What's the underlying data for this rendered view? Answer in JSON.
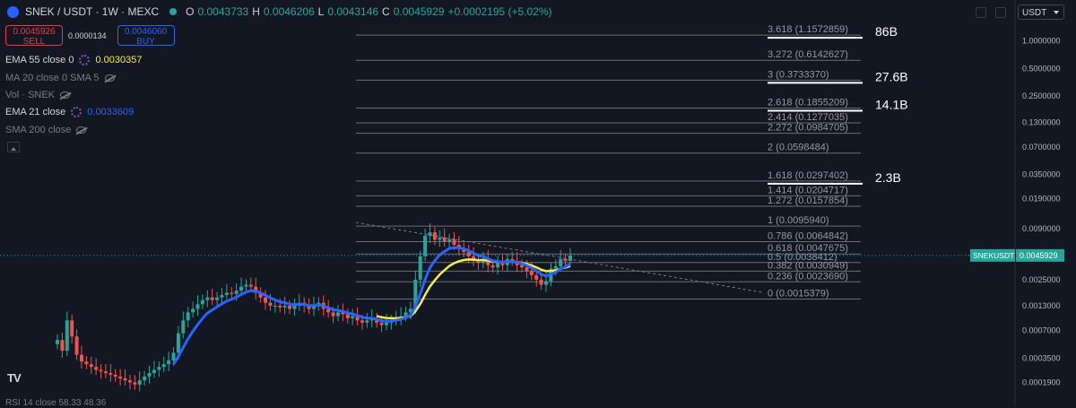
{
  "header": {
    "symbol": "SNEK / USDT · 1W · MEXC",
    "o_label": "O",
    "o_value": "0.0043733",
    "h_label": "H",
    "h_value": "0.0046206",
    "l_label": "L",
    "l_value": "0.0043146",
    "c_label": "C",
    "c_value": "0.0045929",
    "change": "+0.0002195 (+5.02%)"
  },
  "trade": {
    "sell_price": "0.0045926",
    "sell_label": "SELL",
    "spread": "0.0000134",
    "buy_price": "0.0046060",
    "buy_label": "BUY"
  },
  "indicators": [
    {
      "name": "EMA 55 close 0",
      "value": "0.0030357",
      "value_color": "#f7ea4a"
    },
    {
      "name": "MA 20 close 0 SMA 5"
    },
    {
      "name": "Vol · SNEK"
    },
    {
      "name": "EMA 21 close",
      "value": "0.0033609",
      "value_color": "#2962ff"
    },
    {
      "name": "SMA 200 close"
    }
  ],
  "currency": "USDT",
  "price_label": {
    "symbol": "SNEKUSDT",
    "price": "0.0045929"
  },
  "rsi": "RSI 14 close 58.33 48.36",
  "colors": {
    "up": "#26a69a",
    "down": "#ef5350",
    "ema21": "#2962ff",
    "ema55": "#f7ea4a",
    "fib": "#b2b5be"
  },
  "chart_data": {
    "type": "candlestick",
    "y_scale": "log",
    "y_ticks": [
      "1.0000000",
      "0.5000000",
      "0.2500000",
      "0.1300000",
      "0.0700000",
      "0.0350000",
      "0.0190000",
      "0.0090000",
      "0.0025000",
      "0.0013000",
      "0.0007000",
      "0.0003500",
      "0.0001900"
    ],
    "y_range": [
      0.00014,
      1.7
    ],
    "fib_levels": [
      {
        "ratio": "3.618",
        "price": "1.1572859",
        "target": "86B"
      },
      {
        "ratio": "3.272",
        "price": "0.6142627"
      },
      {
        "ratio": "3",
        "price": "0.3733370",
        "target": "27.6B"
      },
      {
        "ratio": "2.618",
        "price": "0.1855209",
        "target": "14.1B"
      },
      {
        "ratio": "2.414",
        "price": "0.1277035"
      },
      {
        "ratio": "2.272",
        "price": "0.0984705"
      },
      {
        "ratio": "2",
        "price": "0.0598484"
      },
      {
        "ratio": "1.618",
        "price": "0.0297402",
        "target": "2.3B"
      },
      {
        "ratio": "1.414",
        "price": "0.0204717"
      },
      {
        "ratio": "1.272",
        "price": "0.0157854"
      },
      {
        "ratio": "1",
        "price": "0.0095940"
      },
      {
        "ratio": "0.786",
        "price": "0.0064842"
      },
      {
        "ratio": "0.618",
        "price": "0.0047675"
      },
      {
        "ratio": "0.5",
        "price": "0.0038412"
      },
      {
        "ratio": "0.382",
        "price": "0.0030949"
      },
      {
        "ratio": "0.236",
        "price": "0.0023690"
      },
      {
        "ratio": "0",
        "price": "0.0015379"
      }
    ],
    "last_price": 0.0045929,
    "closes": [
      0.00055,
      0.00042,
      0.0009,
      0.0006,
      0.00038,
      0.00032,
      0.0003,
      0.00028,
      0.00026,
      0.00025,
      0.00024,
      0.00023,
      0.00022,
      0.00021,
      0.0002,
      0.00019,
      0.00018,
      0.0002,
      0.00022,
      0.00024,
      0.00026,
      0.00028,
      0.0003,
      0.00033,
      0.0004,
      0.00065,
      0.0009,
      0.0011,
      0.0012,
      0.00135,
      0.0015,
      0.0016,
      0.0015,
      0.0016,
      0.0017,
      0.0018,
      0.00175,
      0.0019,
      0.0021,
      0.0022,
      0.0021,
      0.0018,
      0.0016,
      0.0014,
      0.0013,
      0.0013,
      0.00125,
      0.0013,
      0.0012,
      0.0013,
      0.0014,
      0.0013,
      0.0012,
      0.0013,
      0.0014,
      0.0012,
      0.0011,
      0.001,
      0.0011,
      0.00105,
      0.00095,
      0.001,
      0.0009,
      0.00085,
      0.0009,
      0.00095,
      0.00085,
      0.0008,
      0.00085,
      0.0009,
      0.00095,
      0.001,
      0.0011,
      0.0012,
      0.0025,
      0.0045,
      0.0075,
      0.0082,
      0.0068,
      0.0072,
      0.0065,
      0.0069,
      0.006,
      0.0055,
      0.005,
      0.0045,
      0.004,
      0.0038,
      0.0042,
      0.0036,
      0.0034,
      0.0038,
      0.0036,
      0.0042,
      0.004,
      0.0036,
      0.0034,
      0.0031,
      0.0028,
      0.0025,
      0.0022,
      0.0024,
      0.0033,
      0.0035,
      0.0042,
      0.004,
      0.0045929
    ],
    "ema21_last": 0.0033609,
    "ema55_last": 0.0030357
  }
}
